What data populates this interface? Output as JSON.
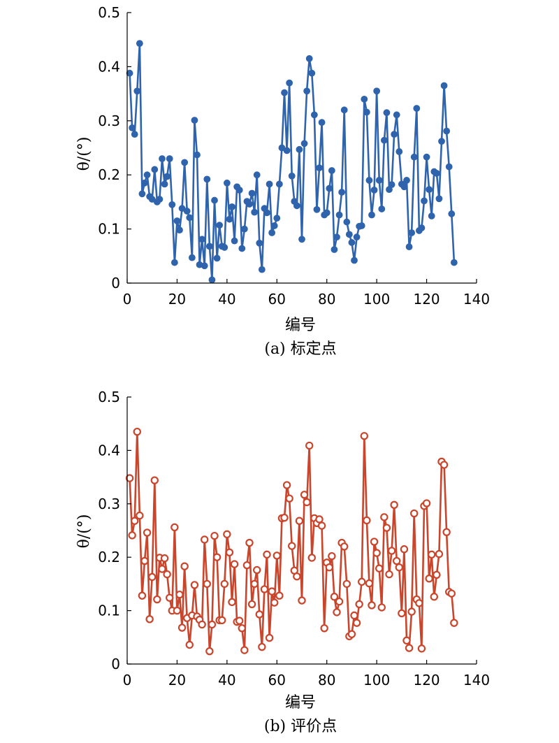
{
  "chart_data": [
    {
      "type": "line",
      "caption": "(a) 标定点",
      "xlabel": "编号",
      "ylabel": "θ/(°)",
      "xlim": [
        0,
        140
      ],
      "ylim": [
        0,
        0.5
      ],
      "xticks": [
        "0",
        "20",
        "40",
        "60",
        "80",
        "100",
        "120",
        "140"
      ],
      "yticks": [
        "0",
        "0.1",
        "0.2",
        "0.3",
        "0.4",
        "0.5"
      ],
      "color": "#2f64ad",
      "marker": "filled-circle",
      "x": [
        1,
        2,
        3,
        4,
        5,
        6,
        7,
        8,
        9,
        10,
        11,
        12,
        13,
        14,
        15,
        16,
        17,
        18,
        19,
        20,
        21,
        22,
        23,
        24,
        25,
        26,
        27,
        28,
        29,
        30,
        31,
        32,
        33,
        34,
        35,
        36,
        37,
        38,
        39,
        40,
        41,
        42,
        43,
        44,
        45,
        46,
        47,
        48,
        49,
        50,
        51,
        52,
        53,
        54,
        55,
        56,
        57,
        58,
        59,
        60,
        61,
        62,
        63,
        64,
        65,
        66,
        67,
        68,
        69,
        70,
        71,
        72,
        73,
        74,
        75,
        76,
        77,
        78,
        79,
        80,
        81,
        82,
        83,
        84,
        85,
        86,
        87,
        88,
        89,
        90,
        91,
        92,
        93,
        94,
        95,
        96,
        97,
        98,
        99,
        100,
        101,
        102,
        103,
        104,
        105,
        106,
        107,
        108,
        109,
        110,
        111,
        112,
        113,
        114,
        115,
        116,
        117,
        118,
        119,
        120,
        121,
        122,
        123,
        124,
        125,
        126,
        127,
        128,
        129,
        130,
        131
      ],
      "y": [
        0.388,
        0.287,
        0.275,
        0.355,
        0.443,
        0.165,
        0.185,
        0.2,
        0.16,
        0.155,
        0.21,
        0.15,
        0.155,
        0.23,
        0.183,
        0.197,
        0.23,
        0.145,
        0.038,
        0.115,
        0.098,
        0.138,
        0.223,
        0.133,
        0.121,
        0.047,
        0.301,
        0.237,
        0.034,
        0.081,
        0.032,
        0.192,
        0.068,
        0.006,
        0.153,
        0.046,
        0.107,
        0.068,
        0.066,
        0.185,
        0.118,
        0.141,
        0.078,
        0.178,
        0.172,
        0.064,
        0.1,
        0.151,
        0.146,
        0.166,
        0.131,
        0.2,
        0.074,
        0.025,
        0.138,
        0.13,
        0.183,
        0.093,
        0.106,
        0.12,
        0.183,
        0.25,
        0.352,
        0.245,
        0.37,
        0.198,
        0.151,
        0.143,
        0.247,
        0.081,
        0.258,
        0.355,
        0.415,
        0.388,
        0.311,
        0.136,
        0.213,
        0.297,
        0.126,
        0.13,
        0.175,
        0.208,
        0.062,
        0.085,
        0.126,
        0.168,
        0.32,
        0.113,
        0.09,
        0.075,
        0.042,
        0.085,
        0.105,
        0.106,
        0.34,
        0.316,
        0.19,
        0.126,
        0.172,
        0.355,
        0.19,
        0.137,
        0.264,
        0.315,
        0.173,
        0.182,
        0.275,
        0.311,
        0.243,
        0.183,
        0.178,
        0.19,
        0.067,
        0.093,
        0.233,
        0.323,
        0.097,
        0.102,
        0.152,
        0.233,
        0.173,
        0.124,
        0.206,
        0.203,
        0.156,
        0.262,
        0.365,
        0.281,
        0.215,
        0.128,
        0.038
      ]
    },
    {
      "type": "line",
      "caption": "(b) 评价点",
      "xlabel": "编号",
      "ylabel": "θ/(°)",
      "xlim": [
        0,
        140
      ],
      "ylim": [
        0,
        0.5
      ],
      "xticks": [
        "0",
        "20",
        "40",
        "60",
        "80",
        "100",
        "120",
        "140"
      ],
      "yticks": [
        "0",
        "0.1",
        "0.2",
        "0.3",
        "0.4",
        "0.5"
      ],
      "color": "#c9452b",
      "marker": "open-circle",
      "x": [
        1,
        2,
        3,
        4,
        5,
        6,
        7,
        8,
        9,
        10,
        11,
        12,
        13,
        14,
        15,
        16,
        17,
        18,
        19,
        20,
        21,
        22,
        23,
        24,
        25,
        26,
        27,
        28,
        29,
        30,
        31,
        32,
        33,
        34,
        35,
        36,
        37,
        38,
        39,
        40,
        41,
        42,
        43,
        44,
        45,
        46,
        47,
        48,
        49,
        50,
        51,
        52,
        53,
        54,
        55,
        56,
        57,
        58,
        59,
        60,
        61,
        62,
        63,
        64,
        65,
        66,
        67,
        68,
        69,
        70,
        71,
        72,
        73,
        74,
        75,
        76,
        77,
        78,
        79,
        80,
        81,
        82,
        83,
        84,
        85,
        86,
        87,
        88,
        89,
        90,
        91,
        92,
        93,
        94,
        95,
        96,
        97,
        98,
        99,
        100,
        101,
        102,
        103,
        104,
        105,
        106,
        107,
        108,
        109,
        110,
        111,
        112,
        113,
        114,
        115,
        116,
        117,
        118,
        119,
        120,
        121,
        122,
        123,
        124,
        125,
        126,
        127,
        128,
        129,
        130,
        131
      ],
      "y": [
        0.348,
        0.241,
        0.268,
        0.435,
        0.278,
        0.128,
        0.193,
        0.246,
        0.084,
        0.163,
        0.344,
        0.121,
        0.199,
        0.178,
        0.198,
        0.168,
        0.124,
        0.1,
        0.256,
        0.1,
        0.13,
        0.068,
        0.183,
        0.086,
        0.036,
        0.091,
        0.148,
        0.089,
        0.083,
        0.074,
        0.233,
        0.15,
        0.024,
        0.074,
        0.24,
        0.2,
        0.082,
        0.082,
        0.15,
        0.243,
        0.209,
        0.116,
        0.187,
        0.079,
        0.081,
        0.067,
        0.026,
        0.185,
        0.227,
        0.112,
        0.15,
        0.176,
        0.093,
        0.032,
        0.14,
        0.205,
        0.049,
        0.136,
        0.115,
        0.203,
        0.128,
        0.273,
        0.274,
        0.335,
        0.31,
        0.221,
        0.175,
        0.164,
        0.268,
        0.119,
        0.317,
        0.303,
        0.409,
        0.199,
        0.273,
        0.264,
        0.271,
        0.259,
        0.067,
        0.19,
        0.181,
        0.202,
        0.126,
        0.097,
        0.117,
        0.227,
        0.22,
        0.15,
        0.052,
        0.056,
        0.091,
        0.077,
        0.112,
        0.154,
        0.427,
        0.269,
        0.151,
        0.11,
        0.229,
        0.208,
        0.179,
        0.106,
        0.275,
        0.255,
        0.168,
        0.212,
        0.298,
        0.193,
        0.181,
        0.095,
        0.215,
        0.044,
        0.03,
        0.098,
        0.282,
        0.121,
        0.114,
        0.029,
        0.296,
        0.301,
        0.16,
        0.205,
        0.126,
        0.167,
        0.206,
        0.379,
        0.373,
        0.247,
        0.135,
        0.132,
        0.077
      ]
    }
  ]
}
